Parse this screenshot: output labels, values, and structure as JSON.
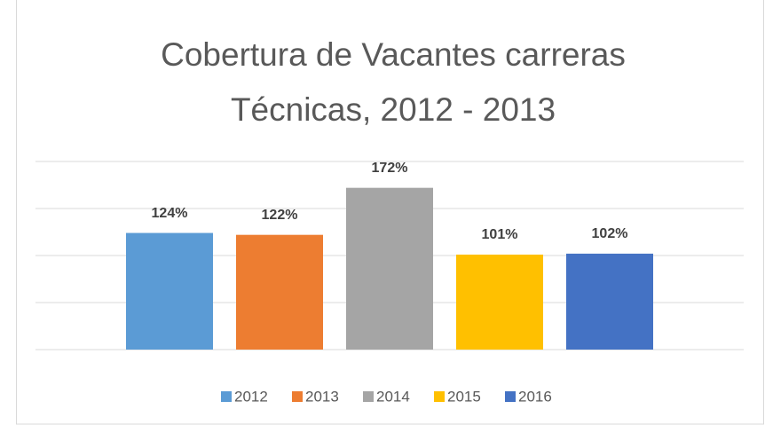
{
  "chart_data": {
    "type": "bar",
    "title": [
      "Cobertura de Vacantes carreras",
      "Técnicas, 2012 - 2013"
    ],
    "categories": [
      null
    ],
    "series": [
      {
        "name": "2012",
        "color": "#5b9bd5",
        "values": [
          124
        ],
        "value_labels": [
          "124%"
        ]
      },
      {
        "name": "2013",
        "color": "#ed7d31",
        "values": [
          122
        ],
        "value_labels": [
          "122%"
        ]
      },
      {
        "name": "2014",
        "color": "#a5a5a5",
        "values": [
          172
        ],
        "value_labels": [
          "172%"
        ]
      },
      {
        "name": "2015",
        "color": "#ffc000",
        "values": [
          101
        ],
        "value_labels": [
          "101%"
        ]
      },
      {
        "name": "2016",
        "color": "#4472c4",
        "values": [
          102
        ],
        "value_labels": [
          "102%"
        ]
      }
    ],
    "ylim": [
      0,
      200
    ],
    "yticks": [
      0,
      50,
      100,
      150,
      200
    ],
    "grid": true,
    "legend": "bottom"
  }
}
